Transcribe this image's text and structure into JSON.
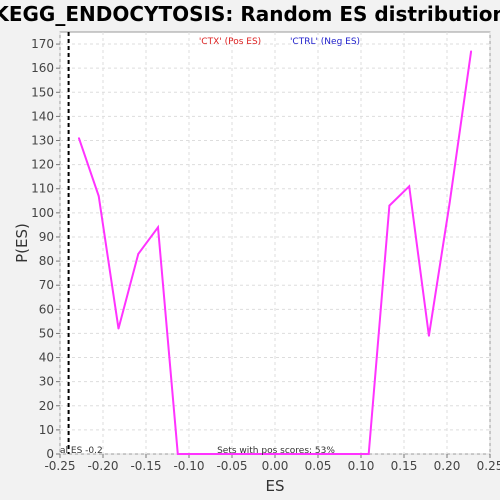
{
  "chart_data": {
    "type": "line",
    "title": "KEGG_ENDOCYTOSIS: Random ES distribution",
    "xlabel": "ES",
    "ylabel": "P(ES)",
    "xlim": [
      -0.25,
      0.25
    ],
    "ylim": [
      0,
      175
    ],
    "x_ticks": [
      "-0.25",
      "-0.20",
      "-0.15",
      "-0.10",
      "-0.05",
      "0.00",
      "0.05",
      "0.10",
      "0.15",
      "0.20",
      "0.25"
    ],
    "y_ticks": [
      "0",
      "10",
      "20",
      "30",
      "40",
      "50",
      "60",
      "70",
      "80",
      "90",
      "100",
      "110",
      "120",
      "130",
      "140",
      "150",
      "160",
      "170"
    ],
    "grid": true,
    "series": [
      {
        "color": "#ff33ff",
        "x": [
          -0.228,
          -0.205,
          -0.182,
          -0.159,
          -0.136,
          -0.113,
          -0.09,
          -0.067,
          -0.044,
          -0.021,
          0.002,
          0.025,
          0.048,
          0.071,
          0.094,
          0.109,
          0.133,
          0.156,
          0.179,
          0.203,
          0.228
        ],
        "y": [
          131,
          107,
          52,
          83,
          94,
          0,
          0,
          0,
          0,
          0,
          0,
          0,
          0,
          0,
          0,
          0,
          103,
          111,
          49,
          104,
          167
        ]
      }
    ],
    "actual_es_marker": {
      "x": -0.24,
      "label": "al ES -0.2"
    },
    "legend": [
      {
        "label": "'CTX' (Pos ES)",
        "color": "#dd2222"
      },
      {
        "label": "'CTRL' (Neg ES)",
        "color": "#2222cc"
      }
    ],
    "annotation": "Sets with pos scores: 53%"
  }
}
